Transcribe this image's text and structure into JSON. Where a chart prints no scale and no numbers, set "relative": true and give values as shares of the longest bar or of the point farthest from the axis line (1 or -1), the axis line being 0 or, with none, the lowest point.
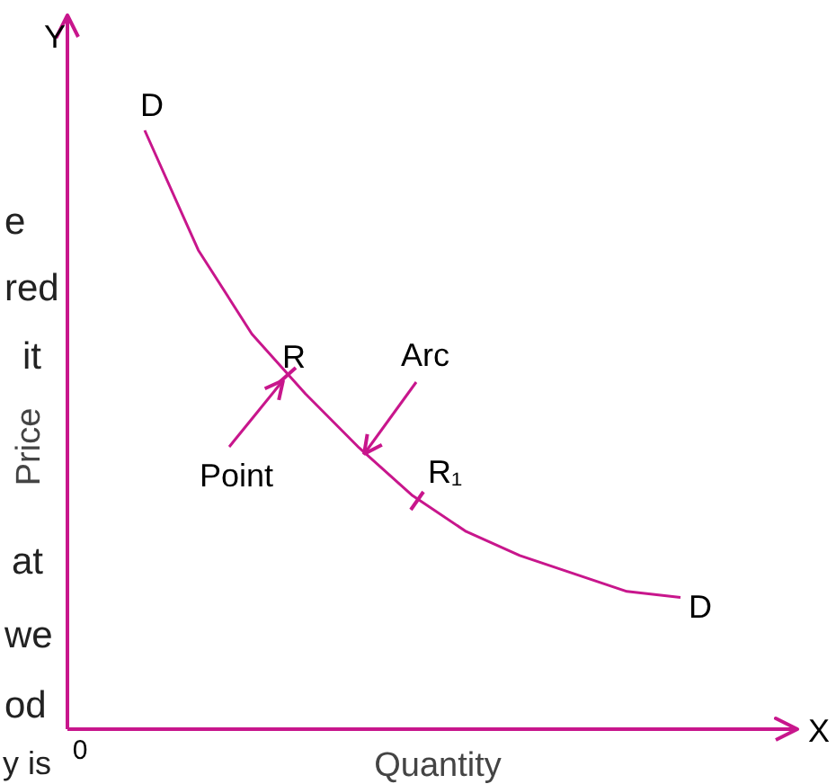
{
  "chart_data": {
    "type": "line",
    "relative": true,
    "xlabel": "Quantity",
    "ylabel": "Price",
    "categories": [
      null,
      null,
      null,
      null,
      null,
      null,
      null,
      null,
      null,
      null,
      null
    ],
    "series": [
      {
        "color": "#c8168c",
        "values": [
          1,
          0.8,
          0.66,
          0.56,
          0.47,
          0.39,
          0.33,
          0.29,
          0.26,
          0.23,
          0.22
        ]
      }
    ],
    "marker": "none",
    "line_style": "solid",
    "grid": false,
    "annotations": [
      "Y",
      "X",
      "0",
      "D",
      "D",
      "R",
      "R₁",
      "Point",
      "Arc",
      "e",
      "red",
      "it",
      "at",
      "we",
      "od",
      "y is"
    ]
  }
}
